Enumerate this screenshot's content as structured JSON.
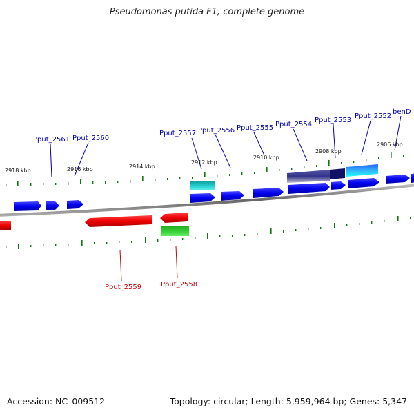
{
  "title": "Pseudomonas putida F1, complete genome",
  "footer": {
    "accession": "Accession: NC_009512",
    "summary": "Topology: circular; Length: 5,959,964 bp; Genes: 5,347"
  },
  "colors": {
    "forward_gene": "#0000ee",
    "reverse_gene": "#ee0000",
    "gene_label_forward": "#0000aa",
    "gene_label_reverse": "#cc0000",
    "rna_green": "#22bb22",
    "teal": "#11bbbb",
    "navy": "#222288",
    "tick": "#117711",
    "backbone": "#888888"
  },
  "kbp_labels": [
    "2918 kbp",
    "2916 kbp",
    "2914 kbp",
    "2912 kbp",
    "2910 kbp",
    "2908 kbp",
    "2906 kbp"
  ],
  "gene_labels": {
    "top": [
      "Pput_2561",
      "Pput_2560",
      "Pput_2557",
      "Pput_2556",
      "Pput_2555",
      "Pput_2554",
      "Pput_2553",
      "Pput_2552",
      "benD"
    ],
    "bottom": [
      "Pput_2559",
      "Pput_2558"
    ]
  }
}
